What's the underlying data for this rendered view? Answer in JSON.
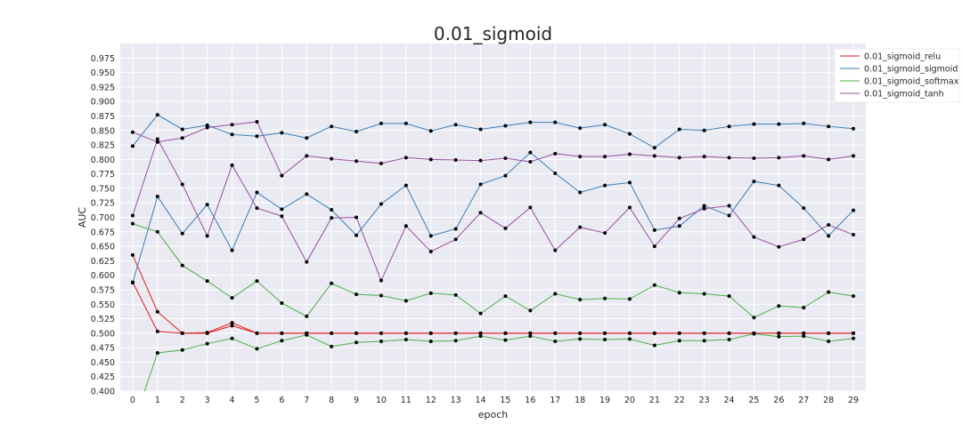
{
  "chart_data": {
    "type": "line",
    "title": "0.01_sigmoid",
    "xlabel": "epoch",
    "ylabel": "AUC",
    "x": [
      0,
      1,
      2,
      3,
      4,
      5,
      6,
      7,
      8,
      9,
      10,
      11,
      12,
      13,
      14,
      15,
      16,
      17,
      18,
      19,
      20,
      21,
      22,
      23,
      24,
      25,
      26,
      27,
      28,
      29
    ],
    "xticks": [
      "0",
      "1",
      "2",
      "3",
      "4",
      "5",
      "6",
      "7",
      "8",
      "9",
      "10",
      "11",
      "12",
      "13",
      "14",
      "15",
      "16",
      "17",
      "18",
      "19",
      "20",
      "21",
      "22",
      "23",
      "24",
      "25",
      "26",
      "27",
      "28",
      "29"
    ],
    "ylim": [
      0.4,
      1.0
    ],
    "yticks": [
      "0.400",
      "0.425",
      "0.450",
      "0.475",
      "0.500",
      "0.525",
      "0.550",
      "0.575",
      "0.600",
      "0.625",
      "0.650",
      "0.675",
      "0.700",
      "0.725",
      "0.750",
      "0.775",
      "0.800",
      "0.825",
      "0.850",
      "0.875",
      "0.900",
      "0.925",
      "0.950",
      "0.975"
    ],
    "grid": true,
    "legend_position": "top-right",
    "marker_color": "#000000",
    "series": [
      {
        "name": "0.01_sigmoid_relu",
        "color": "#e41a1c",
        "runs": [
          [
            0.635,
            0.537,
            0.5,
            0.501,
            0.518,
            0.5,
            0.5,
            0.5,
            0.5,
            0.5,
            0.5,
            0.5,
            0.5,
            0.5,
            0.5,
            0.5,
            0.5,
            0.5,
            0.5,
            0.5,
            0.5,
            0.5,
            0.5,
            0.5,
            0.5,
            0.5,
            0.5,
            0.5,
            0.5,
            0.5
          ],
          [
            0.588,
            0.503,
            0.5,
            0.5,
            0.513,
            0.5,
            0.5,
            0.5,
            0.5,
            0.5,
            0.5,
            0.5,
            0.5,
            0.5,
            0.5,
            0.5,
            0.5,
            0.5,
            0.5,
            0.5,
            0.5,
            0.5,
            0.5,
            0.5,
            0.5,
            0.5,
            0.5,
            0.5,
            0.5,
            0.5
          ]
        ]
      },
      {
        "name": "0.01_sigmoid_sigmoid",
        "color": "#377eb8",
        "runs": [
          [
            0.823,
            0.877,
            0.852,
            0.859,
            0.843,
            0.84,
            0.846,
            0.837,
            0.857,
            0.848,
            0.862,
            0.862,
            0.849,
            0.86,
            0.852,
            0.858,
            0.864,
            0.864,
            0.854,
            0.86,
            0.844,
            0.82,
            0.852,
            0.85,
            0.857,
            0.861,
            0.861,
            0.862,
            0.857,
            0.853
          ],
          [
            0.587,
            0.736,
            0.672,
            0.722,
            0.643,
            0.743,
            0.714,
            0.74,
            0.713,
            0.669,
            0.723,
            0.755,
            0.668,
            0.68,
            0.757,
            0.772,
            0.812,
            0.776,
            0.743,
            0.755,
            0.76,
            0.678,
            0.685,
            0.72,
            0.703,
            0.762,
            0.755,
            0.716,
            0.668,
            0.712
          ]
        ]
      },
      {
        "name": "0.01_sigmoid_softmax",
        "color": "#4daf4a",
        "runs": [
          [
            0.689,
            0.675,
            0.617,
            0.59,
            0.561,
            0.59,
            0.552,
            0.529,
            0.586,
            0.567,
            0.565,
            0.556,
            0.569,
            0.566,
            0.534,
            0.564,
            0.539,
            0.568,
            0.558,
            0.56,
            0.559,
            0.583,
            0.57,
            0.568,
            0.564,
            0.527,
            0.547,
            0.544,
            0.571,
            0.564
          ],
          [
            0.34,
            0.466,
            0.471,
            0.482,
            0.491,
            0.473,
            0.487,
            0.497,
            0.477,
            0.484,
            0.486,
            0.489,
            0.486,
            0.487,
            0.495,
            0.488,
            0.495,
            0.486,
            0.49,
            0.489,
            0.49,
            0.479,
            0.487,
            0.487,
            0.489,
            0.499,
            0.494,
            0.495,
            0.486,
            0.491
          ]
        ]
      },
      {
        "name": "0.01_sigmoid_tanh",
        "color": "#984ea3",
        "runs": [
          [
            0.847,
            0.83,
            0.837,
            0.855,
            0.86,
            0.865,
            0.772,
            0.806,
            0.801,
            0.797,
            0.793,
            0.803,
            0.8,
            0.799,
            0.798,
            0.802,
            0.796,
            0.81,
            0.805,
            0.805,
            0.809,
            0.806,
            0.803,
            0.805,
            0.803,
            0.802,
            0.803,
            0.806,
            0.8,
            0.806
          ],
          [
            0.703,
            0.835,
            0.757,
            0.668,
            0.79,
            0.716,
            0.702,
            0.623,
            0.699,
            0.7,
            0.591,
            0.685,
            0.641,
            0.662,
            0.708,
            0.681,
            0.717,
            0.643,
            0.683,
            0.673,
            0.717,
            0.65,
            0.698,
            0.715,
            0.72,
            0.666,
            0.649,
            0.662,
            0.687,
            0.67
          ]
        ]
      }
    ]
  }
}
